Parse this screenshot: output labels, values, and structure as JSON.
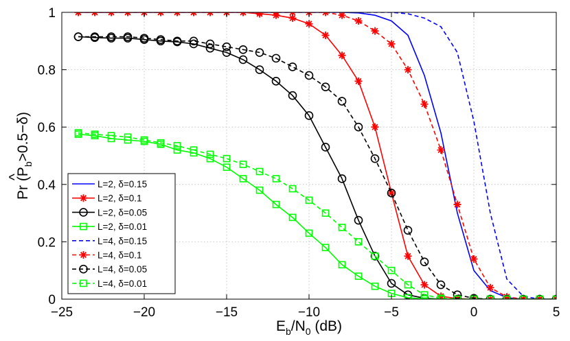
{
  "chart_data": {
    "type": "line",
    "title": "",
    "xlabel": {
      "base": "E",
      "sub1": "b",
      "mid": "/N",
      "sub2": "0",
      "tail": " (dB)"
    },
    "ylabel": {
      "prefix": "Pr (",
      "hat": "^",
      "var": "P",
      "sub": "b",
      "suffix": ">0.5−δ)"
    },
    "xlim": [
      -25,
      5
    ],
    "ylim": [
      0,
      1
    ],
    "xticks": [
      -25,
      -20,
      -15,
      -10,
      -5,
      0,
      5
    ],
    "xtick_labels": [
      "−25",
      "−20",
      "−15",
      "−10",
      "−5",
      "0",
      "5"
    ],
    "yticks": [
      0,
      0.2,
      0.4,
      0.6,
      0.8,
      1
    ],
    "ytick_labels": [
      "0",
      "0.2",
      "0.4",
      "0.6",
      "0.8",
      "1"
    ],
    "grid": true,
    "legend_position": "lower-left",
    "x": [
      -24,
      -23,
      -22,
      -21,
      -20,
      -19,
      -18,
      -17,
      -16,
      -15,
      -14,
      -13,
      -12,
      -11,
      -10,
      -9,
      -8,
      -7,
      -6,
      -5,
      -4,
      -3,
      -2,
      -1,
      0,
      1,
      2,
      3,
      4,
      5
    ],
    "series": [
      {
        "name": "L=2, δ=0.15",
        "color": "#0000ff",
        "dash": "solid",
        "marker": "none",
        "values": [
          1.0,
          1.0,
          1.0,
          1.0,
          1.0,
          1.0,
          1.0,
          1.0,
          1.0,
          1.0,
          1.0,
          1.0,
          1.0,
          1.0,
          1.0,
          1.0,
          1.0,
          0.998,
          0.99,
          0.97,
          0.92,
          0.78,
          0.58,
          0.3,
          0.1,
          0.03,
          0.005,
          0,
          0,
          0
        ]
      },
      {
        "name": "L=2, δ=0.1",
        "color": "#ff0000",
        "dash": "solid",
        "marker": "star",
        "values": [
          1.0,
          1.0,
          1.0,
          1.0,
          1.0,
          1.0,
          1.0,
          1.0,
          1.0,
          1.0,
          1.0,
          0.995,
          0.99,
          0.98,
          0.96,
          0.92,
          0.85,
          0.76,
          0.6,
          0.37,
          0.15,
          0.05,
          0.01,
          0.002,
          0,
          0,
          0,
          0,
          0,
          0
        ]
      },
      {
        "name": "L=2, δ=0.05",
        "color": "#000000",
        "dash": "solid",
        "marker": "circle",
        "values": [
          0.915,
          0.912,
          0.91,
          0.91,
          0.905,
          0.9,
          0.897,
          0.89,
          0.875,
          0.86,
          0.835,
          0.8,
          0.76,
          0.71,
          0.64,
          0.53,
          0.42,
          0.275,
          0.15,
          0.055,
          0.015,
          0.003,
          0,
          0,
          0,
          0,
          0,
          0,
          0,
          0
        ]
      },
      {
        "name": "L=2, δ=0.01",
        "color": "#00ff00",
        "dash": "solid",
        "marker": "square",
        "values": [
          0.575,
          0.57,
          0.56,
          0.555,
          0.55,
          0.54,
          0.52,
          0.51,
          0.49,
          0.46,
          0.42,
          0.38,
          0.33,
          0.285,
          0.23,
          0.18,
          0.12,
          0.08,
          0.045,
          0.02,
          0.005,
          0.001,
          0,
          0,
          0,
          0,
          0,
          0,
          0,
          0
        ]
      },
      {
        "name": "L=4, δ=0.15",
        "color": "#0000ff",
        "dash": "dashed",
        "marker": "none",
        "values": [
          1.0,
          1.0,
          1.0,
          1.0,
          1.0,
          1.0,
          1.0,
          1.0,
          1.0,
          1.0,
          1.0,
          1.0,
          1.0,
          1.0,
          1.0,
          1.0,
          1.0,
          1.0,
          1.0,
          1.0,
          0.995,
          0.98,
          0.95,
          0.86,
          0.62,
          0.3,
          0.07,
          0.01,
          0,
          0
        ]
      },
      {
        "name": "L=4, δ=0.1",
        "color": "#ff0000",
        "dash": "dashed",
        "marker": "star",
        "values": [
          1.0,
          1.0,
          1.0,
          1.0,
          1.0,
          1.0,
          1.0,
          1.0,
          1.0,
          1.0,
          1.0,
          1.0,
          1.0,
          1.0,
          1.0,
          1.0,
          0.99,
          0.97,
          0.935,
          0.89,
          0.8,
          0.68,
          0.52,
          0.33,
          0.14,
          0.04,
          0.008,
          0,
          0,
          0
        ]
      },
      {
        "name": "L=4, δ=0.05",
        "color": "#000000",
        "dash": "dashed",
        "marker": "circle",
        "values": [
          0.915,
          0.915,
          0.915,
          0.915,
          0.91,
          0.905,
          0.9,
          0.9,
          0.89,
          0.88,
          0.87,
          0.86,
          0.84,
          0.81,
          0.78,
          0.74,
          0.69,
          0.6,
          0.49,
          0.37,
          0.24,
          0.13,
          0.05,
          0.015,
          0.003,
          0,
          0,
          0,
          0,
          0
        ]
      },
      {
        "name": "L=4, δ=0.01",
        "color": "#00ff00",
        "dash": "dashed",
        "marker": "square",
        "values": [
          0.58,
          0.575,
          0.57,
          0.565,
          0.555,
          0.545,
          0.535,
          0.52,
          0.505,
          0.49,
          0.47,
          0.445,
          0.42,
          0.385,
          0.345,
          0.3,
          0.25,
          0.2,
          0.15,
          0.1,
          0.05,
          0.015,
          0.003,
          0,
          0,
          0,
          0,
          0,
          0,
          0
        ]
      }
    ]
  }
}
